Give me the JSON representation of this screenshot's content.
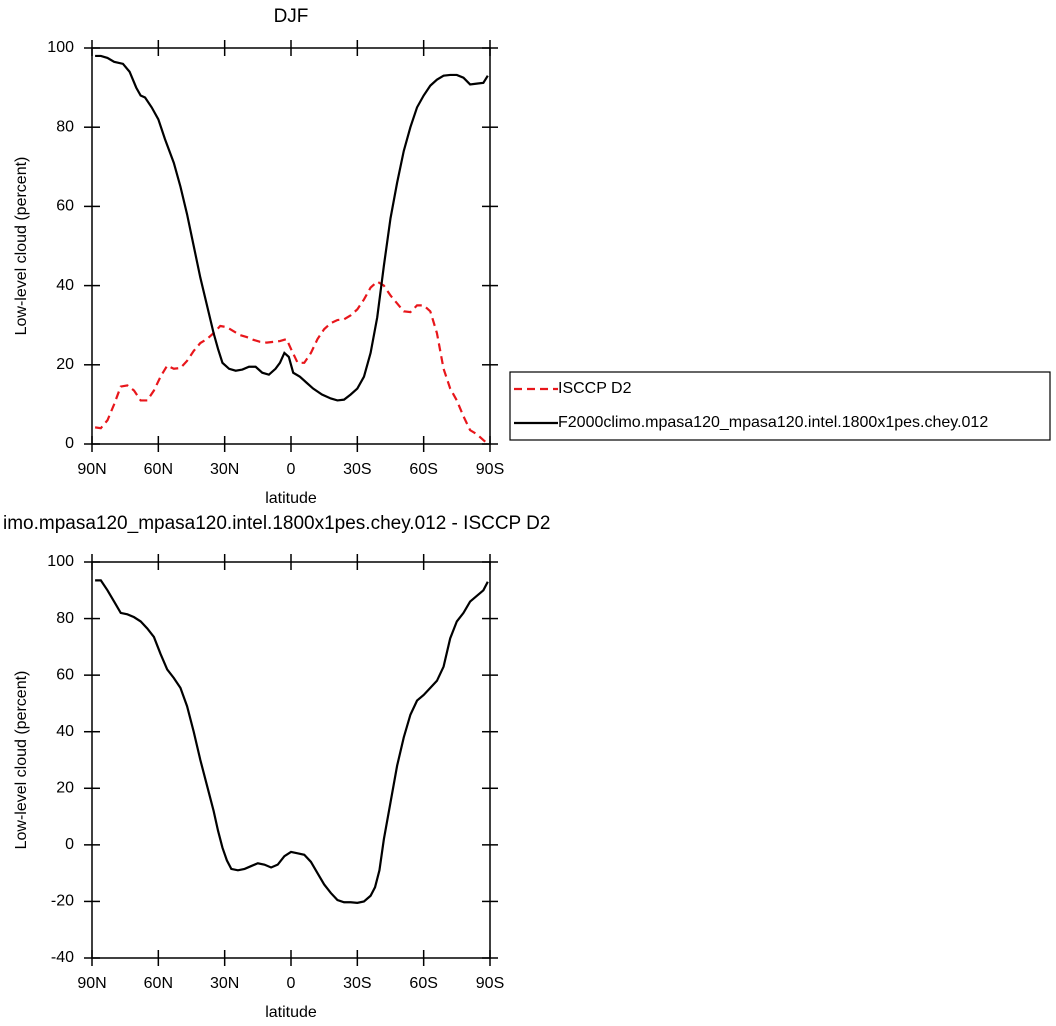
{
  "chart_data": [
    {
      "type": "line",
      "title": "DJF",
      "xlabel": "latitude",
      "ylabel": "Low-level cloud (percent)",
      "xlim": [
        90,
        -90
      ],
      "xticks": [
        {
          "value": 90,
          "label": "90N"
        },
        {
          "value": 60,
          "label": "60N"
        },
        {
          "value": 30,
          "label": "30N"
        },
        0,
        {
          "value": -30,
          "label": "30S"
        },
        {
          "value": -60,
          "label": "60S"
        },
        {
          "value": -90,
          "label": "90S"
        }
      ],
      "ylim": [
        0,
        100
      ],
      "yticks": [
        0,
        20,
        40,
        60,
        80,
        100
      ],
      "legend": "outside-right",
      "series": [
        {
          "name": "ISCCP D2",
          "color": "#e8161b",
          "linestyle": "dashed",
          "x": [
            88.6,
            86,
            83,
            80,
            77,
            74,
            71,
            68,
            65,
            62,
            59,
            56,
            53,
            50,
            47,
            44,
            41,
            38,
            35,
            32,
            29,
            26,
            23,
            20,
            17,
            14,
            11,
            8,
            5,
            2,
            0,
            -3,
            -6,
            -9,
            -12,
            -15,
            -18,
            -21,
            -24,
            -27,
            -30,
            -33,
            -36,
            -39,
            -42,
            -45,
            -48,
            -51,
            -54,
            -57,
            -60,
            -63,
            -66,
            -69,
            -72,
            -75,
            -78,
            -81,
            -84,
            -87,
            -89
          ],
          "values": [
            4.2,
            4,
            6,
            10,
            14.5,
            14.8,
            13.5,
            11,
            11,
            13.5,
            17,
            19.8,
            19,
            19.2,
            21,
            23.5,
            25.5,
            26.5,
            28,
            29.8,
            29.5,
            28.5,
            27.5,
            27,
            26.3,
            25.8,
            25.6,
            25.8,
            26,
            26.5,
            24,
            20.5,
            20.5,
            23,
            26.5,
            29,
            30.5,
            31.3,
            31.5,
            32.5,
            34,
            36.5,
            39.5,
            41,
            40,
            37.5,
            35.5,
            33.5,
            33.3,
            35,
            35,
            33.5,
            28,
            19,
            14,
            11,
            7,
            3.5,
            2.5,
            1,
            0
          ]
        },
        {
          "name": "F2000climo.mpasa120_mpasa120.intel.1800x1pes.chey.012",
          "color": "#000000",
          "linestyle": "solid",
          "x": [
            88.6,
            86,
            83,
            80,
            76,
            73,
            70,
            68,
            66,
            63,
            60,
            57,
            53,
            50,
            47,
            44,
            41,
            38,
            35,
            33,
            31,
            28,
            25,
            22,
            19,
            16,
            13,
            10,
            7,
            5,
            3,
            1,
            -1,
            -4,
            -7,
            -10,
            -14,
            -18,
            -21,
            -24,
            -27,
            -30,
            -33,
            -36,
            -39,
            -42,
            -45,
            -48,
            -51,
            -54,
            -57,
            -60,
            -63,
            -66,
            -69,
            -72,
            -75,
            -78,
            -81,
            -84,
            -87,
            -89
          ],
          "values": [
            98,
            98,
            97.5,
            96.5,
            96,
            94,
            90,
            88,
            87.5,
            85,
            82,
            77,
            71,
            65,
            58,
            50,
            42,
            35,
            28,
            24,
            20.5,
            19,
            18.5,
            18.8,
            19.5,
            19.5,
            18,
            17.5,
            19,
            20.5,
            23,
            22,
            18,
            17,
            15.5,
            14,
            12.5,
            11.5,
            11,
            11.2,
            12.5,
            14,
            17,
            23,
            32,
            45,
            57,
            66,
            74,
            80,
            85,
            88,
            90.5,
            92,
            93,
            93.2,
            93.2,
            92.5,
            90.8,
            91,
            91.2,
            93
          ]
        }
      ]
    },
    {
      "type": "line",
      "title": "imo.mpasa120_mpasa120.intel.1800x1pes.chey.012 - ISCCP D2",
      "xlabel": "latitude",
      "ylabel": "Low-level cloud (percent)",
      "xlim": [
        90,
        -90
      ],
      "xticks": [
        {
          "value": 90,
          "label": "90N"
        },
        {
          "value": 60,
          "label": "60N"
        },
        {
          "value": 30,
          "label": "30N"
        },
        0,
        {
          "value": -30,
          "label": "30S"
        },
        {
          "value": -60,
          "label": "60S"
        },
        {
          "value": -90,
          "label": "90S"
        }
      ],
      "ylim": [
        -40,
        100
      ],
      "yticks": [
        -40,
        -20,
        0,
        20,
        40,
        60,
        80,
        100
      ],
      "series": [
        {
          "color": "#000000",
          "linestyle": "solid",
          "x": [
            88.6,
            86,
            83,
            80,
            77,
            74,
            71,
            68,
            65,
            62,
            59,
            56,
            53,
            50,
            47,
            44,
            41,
            38,
            35,
            33,
            31,
            29,
            27,
            24,
            21,
            18,
            15,
            12,
            9,
            6,
            3,
            0,
            -3,
            -6,
            -9,
            -12,
            -15,
            -18,
            -21,
            -24,
            -27,
            -30,
            -33,
            -36,
            -38,
            -40,
            -42,
            -45,
            -48,
            -51,
            -54,
            -57,
            -60,
            -63,
            -66,
            -69,
            -72,
            -75,
            -78,
            -81,
            -84,
            -87,
            -89
          ],
          "values": [
            93.5,
            93.5,
            90,
            86,
            82,
            81.5,
            80.5,
            79,
            76.5,
            73.5,
            67.5,
            62,
            59,
            55.5,
            49,
            40,
            30,
            21,
            12,
            5,
            -1,
            -5.5,
            -8.5,
            -9,
            -8.5,
            -7.5,
            -6.5,
            -7,
            -8,
            -7,
            -4,
            -2.5,
            -3,
            -3.5,
            -6,
            -10,
            -14,
            -17,
            -19.5,
            -20.3,
            -20.3,
            -20.5,
            -20,
            -18,
            -15,
            -9,
            2,
            15,
            28,
            38,
            46,
            51,
            53,
            55.5,
            58,
            63,
            73,
            79,
            82,
            86,
            88,
            90,
            93
          ]
        }
      ]
    }
  ]
}
